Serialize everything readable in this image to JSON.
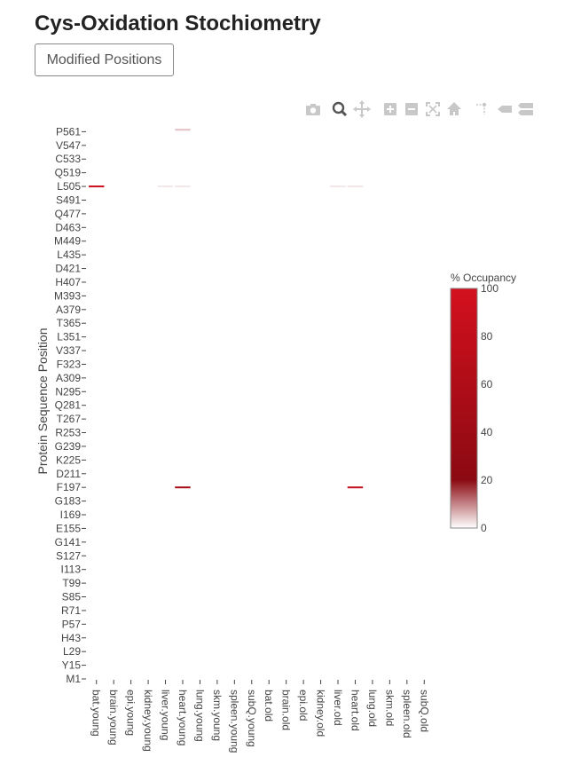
{
  "page": {
    "title": "Cys-Oxidation Stochiometry",
    "button_label": "Modified Positions"
  },
  "modebar": {
    "icons": [
      "camera-icon",
      "zoom-icon",
      "pan-icon",
      "zoom-in-icon",
      "zoom-out-icon",
      "autoscale-icon",
      "home-icon",
      "spike-lines-icon",
      "hover-closest-icon",
      "hover-compare-icon"
    ],
    "active": "zoom-icon",
    "color": "#c8c8c8",
    "active_color": "#555555"
  },
  "chart_data": {
    "type": "heatmap",
    "ylabel": "Protein Sequence Position",
    "x_categories": [
      "bat.young",
      "brain.young",
      "epi.young",
      "kidney.young",
      "liver.young",
      "heart.young",
      "lung.young",
      "skm.young",
      "spleen.young",
      "subQ.young",
      "bat.old",
      "brain.old",
      "epi.old",
      "kidney.old",
      "liver.old",
      "heart.old",
      "lung.old",
      "skm.old",
      "spleen.old",
      "subQ.old"
    ],
    "y_tick_labels": [
      "M1",
      "Y15",
      "L29",
      "H43",
      "P57",
      "R71",
      "S85",
      "T99",
      "I113",
      "S127",
      "G141",
      "E155",
      "I169",
      "G183",
      "F197",
      "D211",
      "K225",
      "G239",
      "R253",
      "T267",
      "Q281",
      "N295",
      "A309",
      "F323",
      "V337",
      "L351",
      "T365",
      "A379",
      "M393",
      "H407",
      "D421",
      "L435",
      "M449",
      "D463",
      "Q477",
      "S491",
      "L505",
      "Q519",
      "C533",
      "V547",
      "P561"
    ],
    "y_range": [
      1,
      565
    ],
    "cells": [
      {
        "x": "bat.young",
        "y": 505,
        "value": 90
      },
      {
        "x": "liver.young",
        "y": 505,
        "value": 2
      },
      {
        "x": "heart.young",
        "y": 505,
        "value": 2
      },
      {
        "x": "heart.young",
        "y": 563,
        "value": 5
      },
      {
        "x": "heart.young",
        "y": 197,
        "value": 50
      },
      {
        "x": "liver.old",
        "y": 505,
        "value": 2
      },
      {
        "x": "heart.old",
        "y": 505,
        "value": 2
      },
      {
        "x": "heart.old",
        "y": 197,
        "value": 85
      }
    ],
    "colorbar": {
      "title": "% Occupancy",
      "ticks": [
        0,
        20,
        40,
        60,
        80,
        100
      ],
      "range": [
        0,
        100
      ],
      "colorscale": [
        [
          0,
          "#ffffff"
        ],
        [
          0.2,
          "#8b0a12"
        ],
        [
          1,
          "#d4101e"
        ]
      ]
    }
  }
}
